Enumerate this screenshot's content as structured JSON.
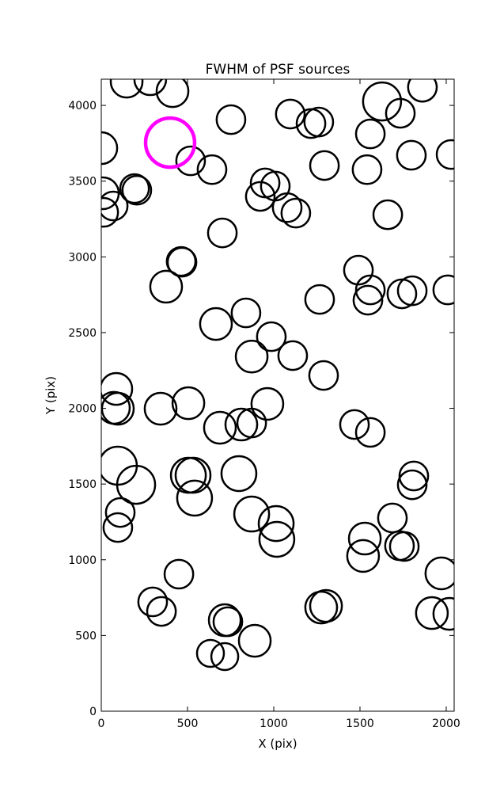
{
  "chart_data": {
    "type": "scatter",
    "title": "FWHM of PSF sources",
    "xlabel": "X (pix)",
    "ylabel": "Y (pix)",
    "xlim": [
      0,
      2046
    ],
    "ylim": [
      0,
      4173
    ],
    "xticks": [
      0,
      500,
      1000,
      1500,
      2000
    ],
    "yticks": [
      0,
      500,
      1000,
      1500,
      2000,
      2500,
      3000,
      3500,
      4000
    ],
    "series": [
      {
        "color": "#000000",
        "x": [
          147,
          284,
          413,
          0,
          752,
          1096,
          1216,
          1261,
          1628,
          1734,
          1862,
          1560,
          1798,
          2028,
          1294,
          1541,
          518,
          642,
          9,
          69,
          14,
          193,
          206,
          950,
          1009,
          922,
          1078,
          1128,
          1661,
          702,
          463,
          468,
          376,
          1491,
          1560,
          1546,
          1266,
          1743,
          1803,
          2009,
          839,
          665,
          986,
          872,
          1110,
          1289,
          87,
          73,
          96,
          344,
          505,
          963,
          688,
          812,
          872,
          1468,
          1560,
          96,
          202,
          505,
          532,
          541,
          798,
          1812,
          1803,
          110,
          96,
          872,
          1014,
          1018,
          1688,
          1528,
          1518,
          1729,
          1757,
          450,
          1972,
          298,
          349,
          716,
          734,
          1275,
          1303,
          1917,
          2018,
          890,
          633,
          716
        ],
        "values": [
          4157,
          4173,
          4094,
          3718,
          3906,
          3943,
          3880,
          3890,
          4026,
          3948,
          4120,
          3812,
          3671,
          3676,
          3603,
          3576,
          3634,
          3576,
          3420,
          3336,
          3294,
          3451,
          3440,
          3488,
          3467,
          3399,
          3325,
          3289,
          3278,
          3158,
          2970,
          2965,
          2803,
          2912,
          2782,
          2714,
          2719,
          2756,
          2776,
          2782,
          2630,
          2557,
          2473,
          2342,
          2348,
          2217,
          2128,
          2003,
          1997,
          1997,
          2034,
          2029,
          1872,
          1893,
          1903,
          1893,
          1841,
          1621,
          1495,
          1558,
          1558,
          1407,
          1569,
          1553,
          1495,
          1312,
          1213,
          1302,
          1239,
          1135,
          1276,
          1140,
          1025,
          1093,
          1088,
          905,
          910,
          722,
          659,
          601,
          591,
          685,
          695,
          648,
          643,
          465,
          382,
          361
        ],
        "sizes": [
          92,
          92,
          92,
          92,
          83,
          83,
          83,
          83,
          110,
          83,
          83,
          83,
          83,
          83,
          83,
          83,
          83,
          83,
          92,
          83,
          83,
          83,
          83,
          83,
          83,
          83,
          83,
          83,
          83,
          83,
          83,
          83,
          92,
          83,
          83,
          83,
          83,
          83,
          83,
          83,
          83,
          92,
          83,
          92,
          83,
          83,
          92,
          92,
          92,
          92,
          92,
          92,
          92,
          92,
          83,
          83,
          83,
          110,
          110,
          101,
          101,
          101,
          101,
          83,
          83,
          83,
          83,
          101,
          101,
          101,
          83,
          92,
          92,
          83,
          83,
          83,
          92,
          83,
          83,
          92,
          83,
          92,
          92,
          92,
          92,
          92,
          78,
          78
        ]
      },
      {
        "color": "#ff00ff",
        "x": [
          399
        ],
        "values": [
          3754
        ],
        "sizes": [
          142
        ]
      }
    ]
  }
}
